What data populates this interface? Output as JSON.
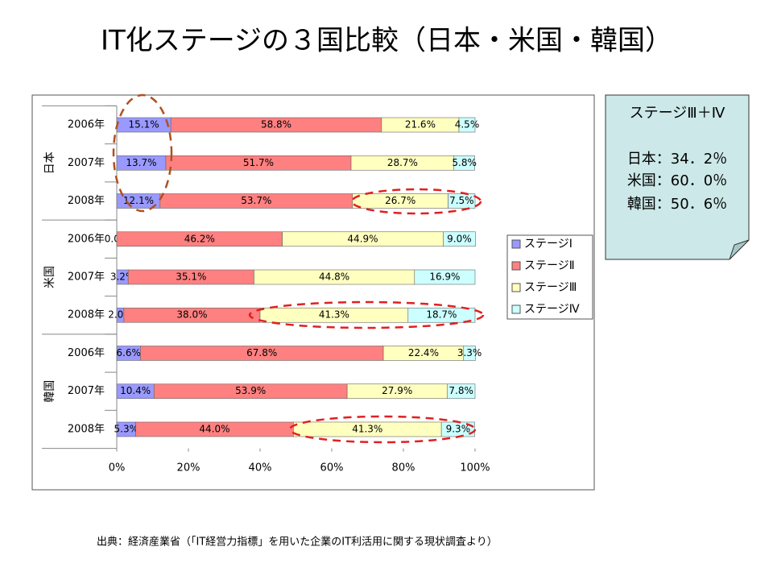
{
  "title": "IT化ステージの３国比較（日本・米国・韓国）",
  "chart_data": {
    "type": "stacked-bar-horizontal",
    "categories": [
      "2006年",
      "2007年",
      "2008年",
      "2006年",
      "2007年",
      "2008年",
      "2006年",
      "2007年",
      "2008年"
    ],
    "groups": [
      "日本",
      "米国",
      "韓国"
    ],
    "series": [
      {
        "name": "ステージⅠ",
        "color": "#9999ff",
        "values": [
          15.1,
          13.7,
          12.1,
          0.0,
          3.2,
          2.0,
          6.6,
          10.4,
          5.3
        ],
        "value_labels": [
          "15.1%",
          "13.7%",
          "12.1%",
          "0.0%",
          "3.2%",
          "2.0%",
          "6.6%",
          "10.4%",
          "5.3%"
        ]
      },
      {
        "name": "ステージⅡ",
        "color": "#ff8080",
        "values": [
          58.8,
          51.7,
          53.7,
          46.2,
          35.1,
          38.0,
          67.8,
          53.9,
          44.0
        ],
        "value_labels": [
          "58.8%",
          "51.7%",
          "53.7%",
          "46.2%",
          "35.1%",
          "38.0%",
          "67.8%",
          "53.9%",
          "44.0%"
        ]
      },
      {
        "name": "ステージⅢ",
        "color": "#ffffc0",
        "values": [
          21.6,
          28.7,
          26.7,
          44.9,
          44.8,
          41.3,
          22.4,
          27.9,
          41.3
        ],
        "value_labels": [
          "21.6%",
          "28.7%",
          "26.7%",
          "44.9%",
          "44.8%",
          "41.3%",
          "22.4%",
          "27.9%",
          "41.3%"
        ]
      },
      {
        "name": "ステージⅣ",
        "color": "#ccffff",
        "values": [
          4.5,
          5.8,
          7.5,
          9.0,
          16.9,
          18.7,
          3.3,
          7.8,
          9.3
        ],
        "value_labels": [
          "4.5%",
          "5.8%",
          "7.5%",
          "9.0%",
          "16.9%",
          "18.7%",
          "3.3%",
          "7.8%",
          "9.3%"
        ]
      }
    ],
    "xlim": [
      0,
      100
    ],
    "xticks": [
      {
        "value": 0,
        "label": "0%"
      },
      {
        "value": 20,
        "label": "20%"
      },
      {
        "value": 40,
        "label": "40%"
      },
      {
        "value": 60,
        "label": "60%"
      },
      {
        "value": 80,
        "label": "80%"
      },
      {
        "value": 100,
        "label": "100%"
      }
    ],
    "legend": "right"
  },
  "note_box": {
    "title": "ステージⅢ＋Ⅳ",
    "lines": [
      "日本：34．2％",
      "米国：60．0％",
      "韓国：50．6％"
    ]
  },
  "source": "出典：経済産業省（「IT経営力指標」を用いた企業のIT利活用に関する現状調査より）"
}
